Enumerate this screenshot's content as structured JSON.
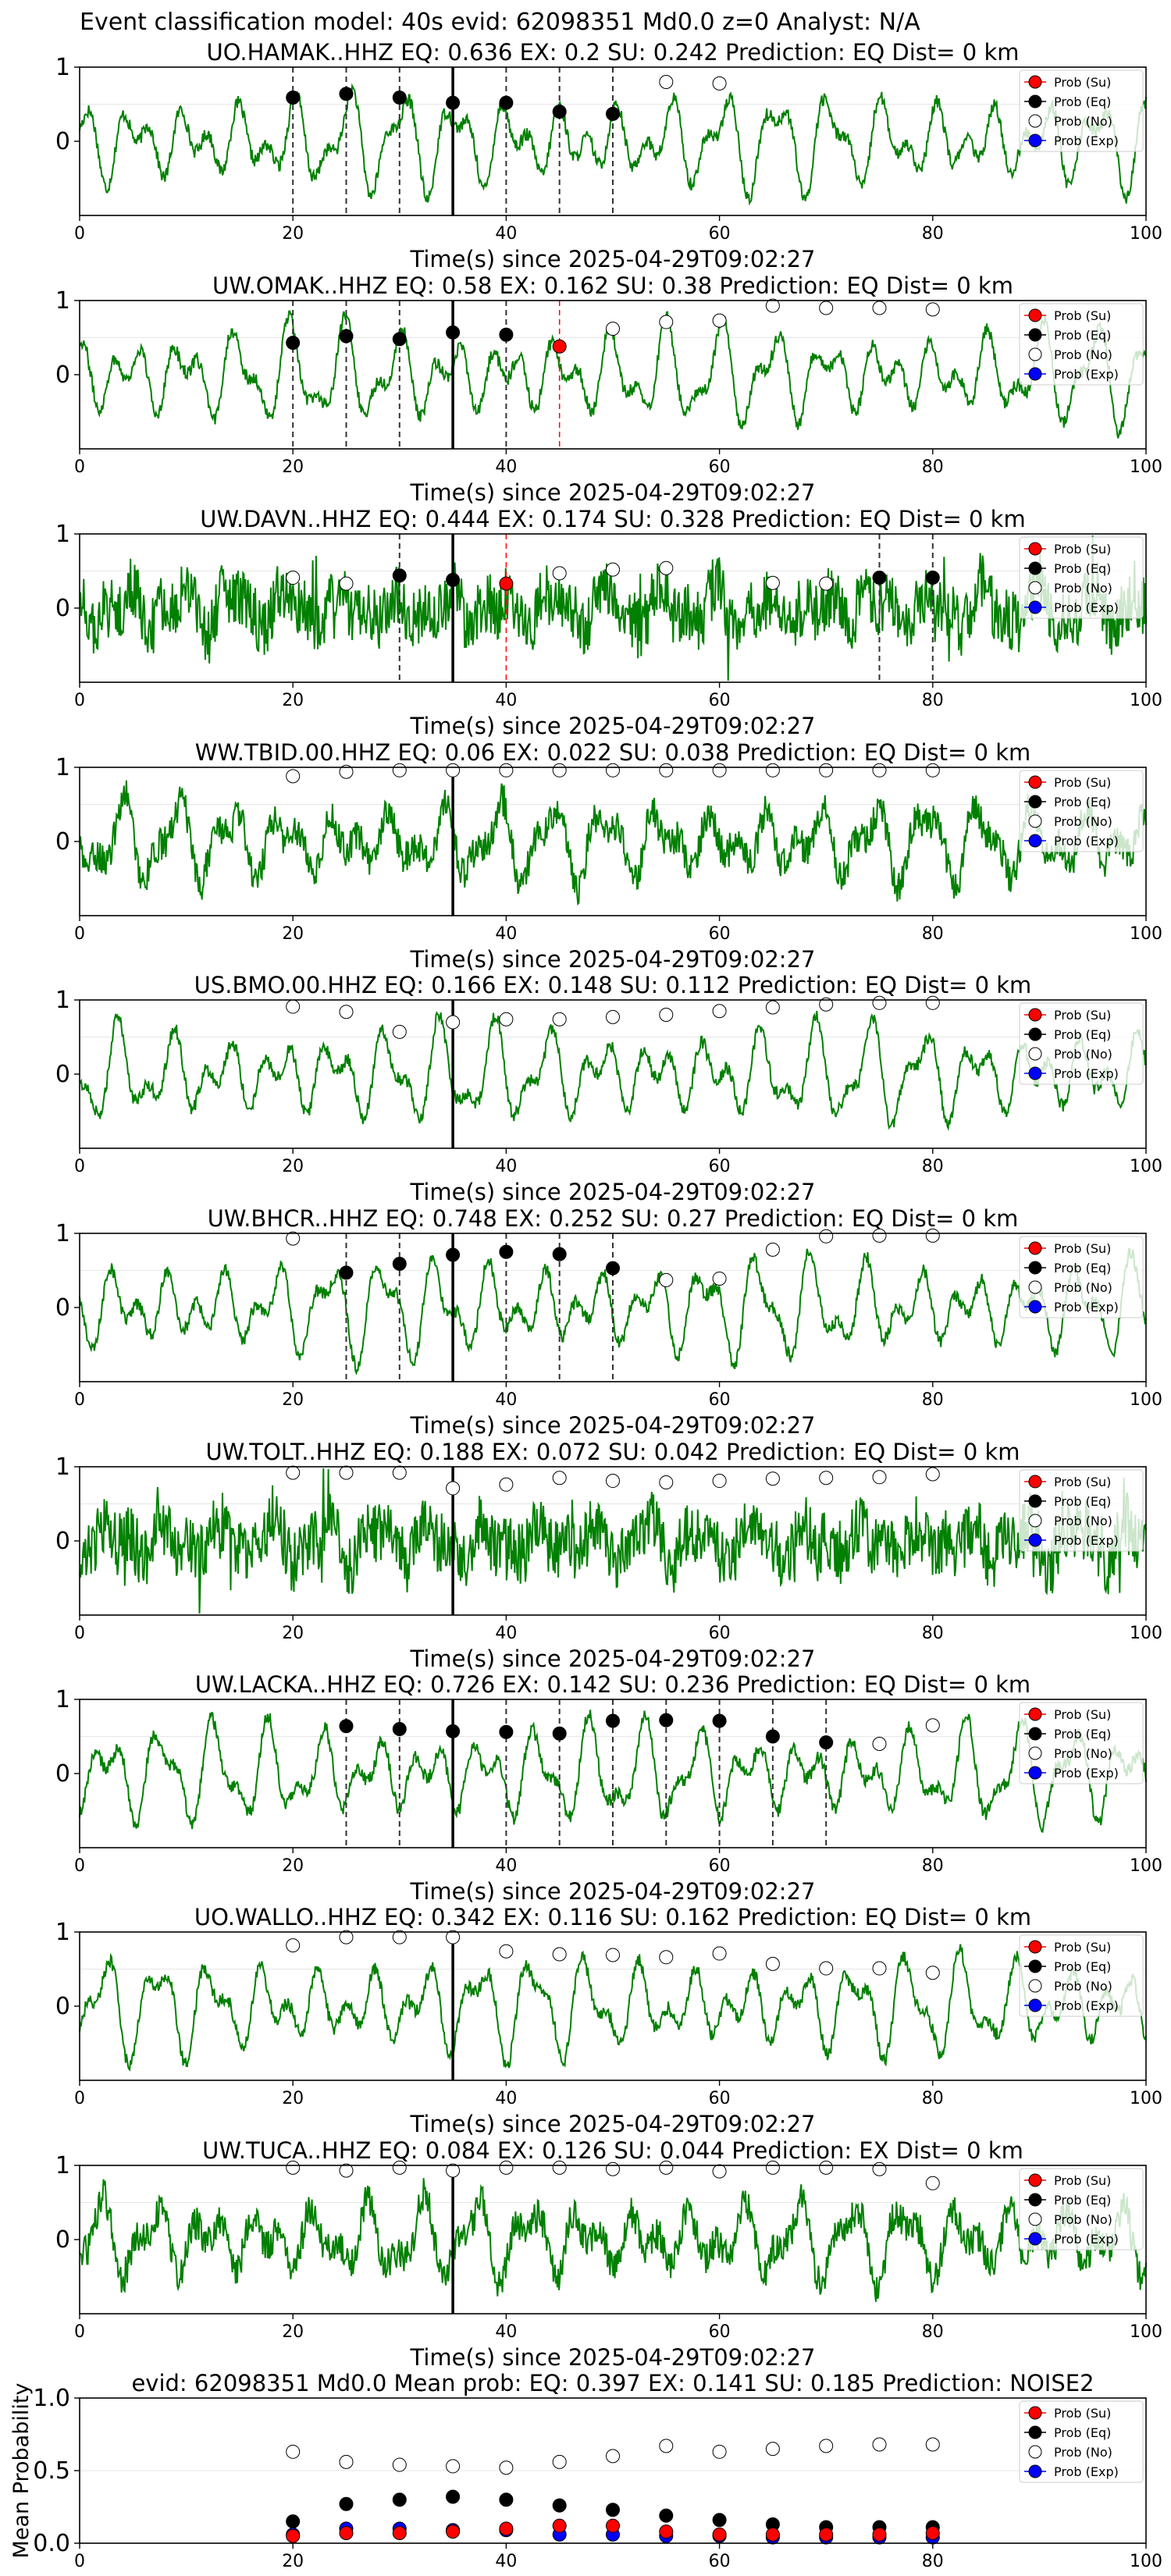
{
  "figure": {
    "suptitle": "Event classification model: 40s evid: 62098351 Md0.0 z=0 Analyst: N/A"
  },
  "legend_labels": [
    "Prob (Su)",
    "Prob (Eq)",
    "Prob (No)",
    "Prob (Exp)"
  ],
  "colors": {
    "waveform": "#008000",
    "su": "#ff0000",
    "eq": "#000000",
    "no": "#ffffff",
    "exp": "#0000ff",
    "red_dash": "#ff0000",
    "eq_dash": "#333333"
  },
  "chart_data": [
    {
      "type": "line",
      "station": "UO.HAMAK..HHZ",
      "title": "UO.HAMAK..HHZ   EQ: 0.636   EX: 0.2   SU: 0.242   Prediction: EQ    Dist= 0 km",
      "xlabel": "Time(s) since 2025-04-29T09:02:27",
      "xlim": [
        0,
        100
      ],
      "ylim": [
        -1,
        1
      ],
      "xticks": [
        "0",
        "20",
        "40",
        "60",
        "80",
        "100"
      ],
      "yticks": [
        "0",
        "1"
      ],
      "marker_line_x": 35,
      "dashed_lines": [
        20,
        25,
        30,
        40,
        45,
        50
      ],
      "red_dashed_lines": [],
      "eq_points": [
        [
          20,
          0.59
        ],
        [
          25,
          0.64
        ],
        [
          30,
          0.59
        ],
        [
          35,
          0.52
        ],
        [
          40,
          0.52
        ],
        [
          45,
          0.4
        ],
        [
          50,
          0.37
        ]
      ],
      "su_points": [],
      "no_points": [
        [
          55,
          0.8
        ],
        [
          60,
          0.78
        ]
      ],
      "waveform_style": "low"
    },
    {
      "type": "line",
      "station": "UW.OMAK..HHZ",
      "title": "UW.OMAK..HHZ   EQ: 0.58   EX: 0.162   SU: 0.38   Prediction: EQ    Dist= 0 km",
      "xlabel": "Time(s) since 2025-04-29T09:02:27",
      "xlim": [
        0,
        100
      ],
      "ylim": [
        -1,
        1
      ],
      "xticks": [
        "0",
        "20",
        "40",
        "60",
        "80",
        "100"
      ],
      "yticks": [
        "0",
        "1"
      ],
      "marker_line_x": 35,
      "dashed_lines": [
        20,
        25,
        30,
        40
      ],
      "red_dashed_lines": [
        45
      ],
      "eq_points": [
        [
          20,
          0.43
        ],
        [
          25,
          0.52
        ],
        [
          30,
          0.48
        ],
        [
          35,
          0.57
        ],
        [
          40,
          0.54
        ]
      ],
      "su_points": [
        [
          45,
          0.38
        ]
      ],
      "no_points": [
        [
          50,
          0.62
        ],
        [
          55,
          0.71
        ],
        [
          60,
          0.73
        ],
        [
          65,
          0.93
        ],
        [
          70,
          0.9
        ],
        [
          75,
          0.9
        ],
        [
          80,
          0.88
        ]
      ],
      "waveform_style": "low"
    },
    {
      "type": "line",
      "station": "UW.DAVN..HHZ",
      "title": "UW.DAVN..HHZ   EQ: 0.444   EX: 0.174   SU: 0.328   Prediction: EQ    Dist= 0 km",
      "xlabel": "Time(s) since 2025-04-29T09:02:27",
      "xlim": [
        0,
        100
      ],
      "ylim": [
        -1,
        1
      ],
      "xticks": [
        "0",
        "20",
        "40",
        "60",
        "80",
        "100"
      ],
      "yticks": [
        "0",
        "1"
      ],
      "marker_line_x": 35,
      "dashed_lines": [
        30,
        75,
        80
      ],
      "red_dashed_lines": [
        40
      ],
      "eq_points": [
        [
          30,
          0.44
        ],
        [
          35,
          0.38
        ],
        [
          75,
          0.41
        ],
        [
          80,
          0.41
        ]
      ],
      "su_points": [
        [
          40,
          0.33
        ]
      ],
      "no_points": [
        [
          20,
          0.41
        ],
        [
          25,
          0.33
        ],
        [
          45,
          0.47
        ],
        [
          50,
          0.52
        ],
        [
          55,
          0.54
        ],
        [
          65,
          0.34
        ],
        [
          70,
          0.33
        ]
      ],
      "waveform_style": "noisy"
    },
    {
      "type": "line",
      "station": "WW.TBID.00.HHZ",
      "title": "WW.TBID.00.HHZ   EQ: 0.06   EX: 0.022   SU: 0.038   Prediction: EQ    Dist= 0 km",
      "xlabel": "Time(s) since 2025-04-29T09:02:27",
      "xlim": [
        0,
        100
      ],
      "ylim": [
        -1,
        1
      ],
      "xticks": [
        "0",
        "20",
        "40",
        "60",
        "80",
        "100"
      ],
      "yticks": [
        "0",
        "1"
      ],
      "marker_line_x": 35,
      "dashed_lines": [],
      "red_dashed_lines": [],
      "eq_points": [],
      "su_points": [],
      "no_points": [
        [
          20,
          0.88
        ],
        [
          25,
          0.94
        ],
        [
          30,
          0.96
        ],
        [
          35,
          0.96
        ],
        [
          40,
          0.96
        ],
        [
          45,
          0.96
        ],
        [
          50,
          0.96
        ],
        [
          55,
          0.96
        ],
        [
          60,
          0.96
        ],
        [
          65,
          0.96
        ],
        [
          70,
          0.96
        ],
        [
          75,
          0.96
        ],
        [
          80,
          0.96
        ]
      ],
      "waveform_style": "mid"
    },
    {
      "type": "line",
      "station": "US.BMO.00.HHZ",
      "title": "US.BMO.00.HHZ   EQ: 0.166   EX: 0.148   SU: 0.112   Prediction: EQ    Dist= 0 km",
      "xlabel": "Time(s) since 2025-04-29T09:02:27",
      "xlim": [
        0,
        100
      ],
      "ylim": [
        -1,
        1
      ],
      "xticks": [
        "0",
        "20",
        "40",
        "60",
        "80",
        "100"
      ],
      "yticks": [
        "0",
        "1"
      ],
      "marker_line_x": 35,
      "dashed_lines": [],
      "red_dashed_lines": [],
      "eq_points": [],
      "su_points": [],
      "no_points": [
        [
          20,
          0.91
        ],
        [
          25,
          0.84
        ],
        [
          30,
          0.57
        ],
        [
          35,
          0.7
        ],
        [
          40,
          0.74
        ],
        [
          45,
          0.74
        ],
        [
          50,
          0.77
        ],
        [
          55,
          0.8
        ],
        [
          60,
          0.85
        ],
        [
          65,
          0.9
        ],
        [
          70,
          0.94
        ],
        [
          75,
          0.96
        ],
        [
          80,
          0.96
        ]
      ],
      "waveform_style": "low"
    },
    {
      "type": "line",
      "station": "UW.BHCR..HHZ",
      "title": "UW.BHCR..HHZ   EQ: 0.748   EX: 0.252   SU: 0.27   Prediction: EQ    Dist= 0 km",
      "xlabel": "Time(s) since 2025-04-29T09:02:27",
      "xlim": [
        0,
        100
      ],
      "ylim": [
        -1,
        1
      ],
      "xticks": [
        "0",
        "20",
        "40",
        "60",
        "80",
        "100"
      ],
      "yticks": [
        "0",
        "1"
      ],
      "marker_line_x": 35,
      "dashed_lines": [
        25,
        30,
        40,
        45,
        50
      ],
      "red_dashed_lines": [],
      "eq_points": [
        [
          25,
          0.47
        ],
        [
          30,
          0.59
        ],
        [
          35,
          0.71
        ],
        [
          40,
          0.75
        ],
        [
          45,
          0.72
        ],
        [
          50,
          0.53
        ]
      ],
      "su_points": [],
      "no_points": [
        [
          20,
          0.93
        ],
        [
          55,
          0.37
        ],
        [
          60,
          0.39
        ],
        [
          65,
          0.78
        ],
        [
          70,
          0.96
        ],
        [
          75,
          0.97
        ],
        [
          80,
          0.97
        ]
      ],
      "waveform_style": "low"
    },
    {
      "type": "line",
      "station": "UW.TOLT..HHZ",
      "title": "UW.TOLT..HHZ   EQ: 0.188  EX: 0.072  SU: 0.042   Prediction: EQ    Dist= 0 km",
      "xlabel": "Time(s) since 2025-04-29T09:02:27",
      "xlim": [
        0,
        100
      ],
      "ylim": [
        -1,
        1
      ],
      "xticks": [
        "0",
        "20",
        "40",
        "60",
        "80",
        "100"
      ],
      "yticks": [
        "0",
        "1"
      ],
      "marker_line_x": 35,
      "dashed_lines": [],
      "red_dashed_lines": [],
      "eq_points": [],
      "su_points": [],
      "no_points": [
        [
          20,
          0.92
        ],
        [
          25,
          0.92
        ],
        [
          30,
          0.92
        ],
        [
          35,
          0.71
        ],
        [
          40,
          0.76
        ],
        [
          45,
          0.85
        ],
        [
          50,
          0.81
        ],
        [
          55,
          0.79
        ],
        [
          60,
          0.81
        ],
        [
          65,
          0.84
        ],
        [
          70,
          0.85
        ],
        [
          75,
          0.86
        ],
        [
          80,
          0.9
        ]
      ],
      "waveform_style": "noisy"
    },
    {
      "type": "line",
      "station": "UW.LACKA..HHZ",
      "title": "UW.LACKA..HHZ   EQ: 0.726   EX: 0.142   SU: 0.236   Prediction: EQ    Dist= 0 km",
      "xlabel": "Time(s) since 2025-04-29T09:02:27",
      "xlim": [
        0,
        100
      ],
      "ylim": [
        -1,
        1
      ],
      "xticks": [
        "0",
        "20",
        "40",
        "60",
        "80",
        "100"
      ],
      "yticks": [
        "0",
        "1"
      ],
      "marker_line_x": 35,
      "dashed_lines": [
        25,
        30,
        40,
        45,
        50,
        55,
        60,
        65,
        70
      ],
      "red_dashed_lines": [],
      "eq_points": [
        [
          25,
          0.64
        ],
        [
          30,
          0.6
        ],
        [
          35,
          0.57
        ],
        [
          40,
          0.56
        ],
        [
          45,
          0.54
        ],
        [
          50,
          0.71
        ],
        [
          55,
          0.72
        ],
        [
          60,
          0.71
        ],
        [
          65,
          0.5
        ],
        [
          70,
          0.42
        ]
      ],
      "su_points": [],
      "no_points": [
        [
          75,
          0.4
        ],
        [
          80,
          0.65
        ]
      ],
      "waveform_style": "low"
    },
    {
      "type": "line",
      "station": "UO.WALLO..HHZ",
      "title": "UO.WALLO..HHZ   EQ: 0.342   EX: 0.116   SU: 0.162   Prediction: EQ    Dist= 0 km",
      "xlabel": "Time(s) since 2025-04-29T09:02:27",
      "xlim": [
        0,
        100
      ],
      "ylim": [
        -1,
        1
      ],
      "xticks": [
        "0",
        "20",
        "40",
        "60",
        "80",
        "100"
      ],
      "yticks": [
        "0",
        "1"
      ],
      "marker_line_x": 35,
      "dashed_lines": [],
      "red_dashed_lines": [],
      "eq_points": [],
      "su_points": [],
      "no_points": [
        [
          20,
          0.82
        ],
        [
          25,
          0.93
        ],
        [
          30,
          0.93
        ],
        [
          35,
          0.93
        ],
        [
          40,
          0.74
        ],
        [
          45,
          0.7
        ],
        [
          50,
          0.69
        ],
        [
          55,
          0.66
        ],
        [
          60,
          0.71
        ],
        [
          65,
          0.57
        ],
        [
          70,
          0.51
        ],
        [
          75,
          0.51
        ],
        [
          80,
          0.45
        ]
      ],
      "waveform_style": "low"
    },
    {
      "type": "line",
      "station": "UW.TUCA..HHZ",
      "title": "UW.TUCA..HHZ   EQ: 0.084   EX: 0.126   SU: 0.044   Prediction: EX    Dist= 0 km",
      "xlabel": "Time(s) since 2025-04-29T09:02:27",
      "xlim": [
        0,
        100
      ],
      "ylim": [
        -1,
        1
      ],
      "xticks": [
        "0",
        "20",
        "40",
        "60",
        "80",
        "100"
      ],
      "yticks": [
        "0",
        "1"
      ],
      "marker_line_x": 35,
      "dashed_lines": [],
      "red_dashed_lines": [],
      "eq_points": [],
      "su_points": [],
      "no_points": [
        [
          20,
          0.97
        ],
        [
          25,
          0.93
        ],
        [
          30,
          0.97
        ],
        [
          35,
          0.93
        ],
        [
          40,
          0.97
        ],
        [
          45,
          0.97
        ],
        [
          50,
          0.95
        ],
        [
          55,
          0.97
        ],
        [
          60,
          0.92
        ],
        [
          65,
          0.97
        ],
        [
          70,
          0.97
        ],
        [
          75,
          0.95
        ],
        [
          80,
          0.76
        ]
      ],
      "waveform_style": "mid"
    },
    {
      "type": "scatter",
      "station": "mean",
      "title": "evid: 62098351  Md0.0   Mean prob:   EQ: 0.397  EX: 0.141  SU: 0.185   Prediction: NOISE2",
      "xlabel": "",
      "ylabel": "Mean Probability",
      "xlim": [
        0,
        100
      ],
      "ylim": [
        0,
        1
      ],
      "xticks": [
        "0",
        "20",
        "40",
        "60",
        "80",
        "100"
      ],
      "yticks": [
        "0.0",
        "0.5",
        "1.0"
      ],
      "x": [
        20,
        25,
        30,
        35,
        40,
        45,
        50,
        55,
        60,
        65,
        70,
        75,
        80
      ],
      "series": [
        {
          "key": "no",
          "values": [
            0.63,
            0.56,
            0.54,
            0.53,
            0.52,
            0.56,
            0.6,
            0.67,
            0.63,
            0.65,
            0.67,
            0.68,
            0.68
          ]
        },
        {
          "key": "eq",
          "values": [
            0.15,
            0.27,
            0.3,
            0.32,
            0.3,
            0.26,
            0.23,
            0.19,
            0.16,
            0.13,
            0.11,
            0.11,
            0.11
          ]
        },
        {
          "key": "exp",
          "values": [
            0.06,
            0.1,
            0.1,
            0.09,
            0.09,
            0.06,
            0.06,
            0.05,
            0.05,
            0.04,
            0.04,
            0.04,
            0.04
          ]
        },
        {
          "key": "su",
          "values": [
            0.05,
            0.07,
            0.07,
            0.08,
            0.1,
            0.12,
            0.12,
            0.08,
            0.06,
            0.06,
            0.06,
            0.06,
            0.07
          ]
        }
      ]
    }
  ]
}
